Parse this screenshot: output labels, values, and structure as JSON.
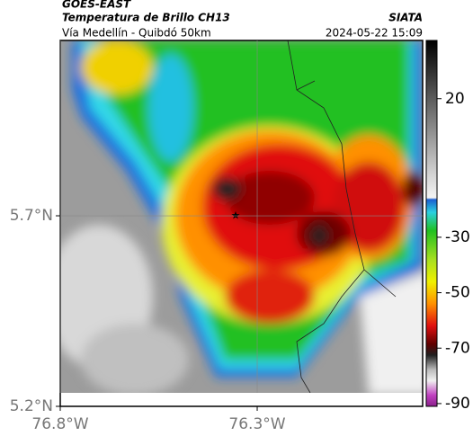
{
  "header": {
    "satellite": "GOES-EAST",
    "product": "Temperatura de Brillo CH13",
    "route": "Vía Medellín - Quibdó 50km",
    "source": "SIATA",
    "timestamp": "2024-05-22 15:09"
  },
  "map": {
    "xlim": [
      -76.8,
      -75.88
    ],
    "ylim": [
      5.2,
      6.16
    ],
    "xticks": [
      {
        "value": -76.8,
        "label": "76.8°W"
      },
      {
        "value": -76.3,
        "label": "76.3°W"
      }
    ],
    "yticks": [
      {
        "value": 5.7,
        "label": "5.7°N"
      },
      {
        "value": 5.2,
        "label": "5.2°N"
      }
    ],
    "grid": true
  },
  "colorbar": {
    "clim": [
      -91,
      41
    ],
    "ticks": [
      20,
      -30,
      -50,
      -70,
      -90
    ]
  }
}
